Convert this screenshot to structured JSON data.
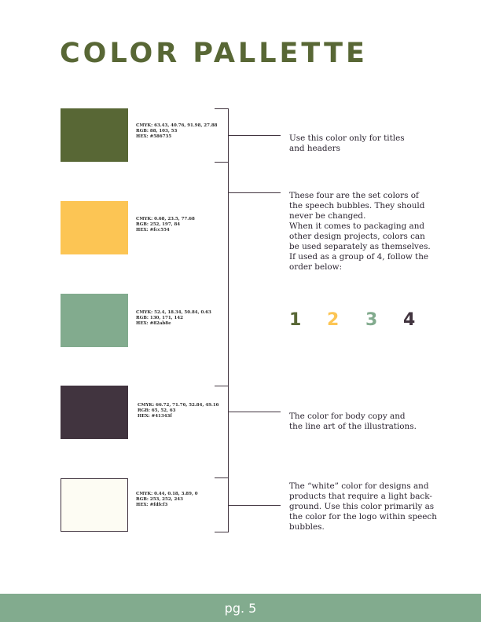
{
  "page": {
    "title": "COLOR PALLETTE",
    "page_number": "pg. 5"
  },
  "colors": {
    "olive": "#586735",
    "yellow": "#fcc554",
    "sage": "#82ab8e",
    "plum": "#41343f",
    "offwhite": "#fdfcf3"
  },
  "swatches": [
    {
      "cmyk": "CMYK: 63.43, 40.76, 91.98, 27.88",
      "rgb": "RGB: 88, 103, 53",
      "hex": "HEX: #586735"
    },
    {
      "cmyk": "CMYK: 0.68, 23.5, 77.68",
      "rgb": "RGB: 252, 197, 84",
      "hex": "HEX: #fcc554"
    },
    {
      "cmyk": "CMYK: 52.4, 18.34, 50.84, 0.63",
      "rgb": "RGB: 130, 171, 142",
      "hex": "HEX: #82ab8e"
    },
    {
      "cmyk": "CMYK: 66.72, 71.76, 52.84, 49.16",
      "rgb": "RGB: 65, 52, 63",
      "hex": "HEX: #41343f"
    },
    {
      "cmyk": "CMYK: 0.44, 0.18, 3.89, 0",
      "rgb": "RGB: 253, 252, 243",
      "hex": "HEX: #fdfcf3"
    }
  ],
  "notes": {
    "titles": [
      "Use this color only for titles",
      "and headers"
    ],
    "speech": [
      "These four are the set colors of",
      "the speech bubbles. They should",
      "never be changed.",
      "When it comes to packaging and",
      "other design projects, colors can",
      "be used separately as themselves.",
      "If used as a group of 4, follow the",
      "order below:"
    ],
    "body": [
      "The color for body copy and",
      "the line art of the illustrations."
    ],
    "white": [
      "The “white” color for designs and",
      "products that require a light back-",
      "ground. Use this color primarily as",
      "the color for the logo within speech",
      "bubbles."
    ]
  },
  "order_numbers": [
    "1",
    "2",
    "3",
    "4"
  ]
}
